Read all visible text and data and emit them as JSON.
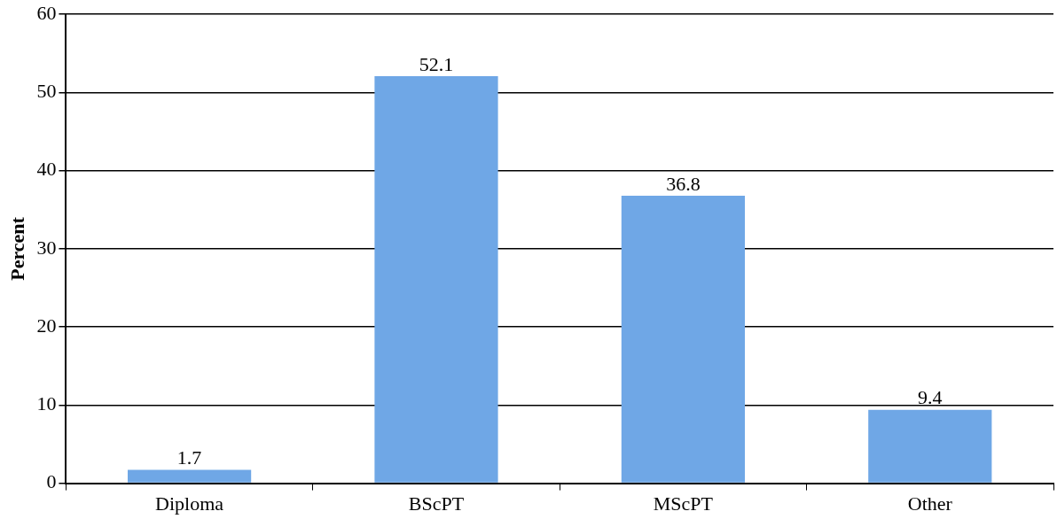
{
  "chart_data": {
    "type": "bar",
    "ylabel": "Percent",
    "categories": [
      "Diploma",
      "BScPT",
      "MScPT",
      "Other"
    ],
    "values": [
      1.7,
      52.1,
      36.8,
      9.4
    ],
    "color": "#6fa7e6",
    "ylim": [
      0,
      60
    ],
    "yticks": [
      0,
      10,
      20,
      30,
      40,
      50,
      60
    ],
    "grid": "y",
    "legend": false,
    "data_labels": true
  }
}
